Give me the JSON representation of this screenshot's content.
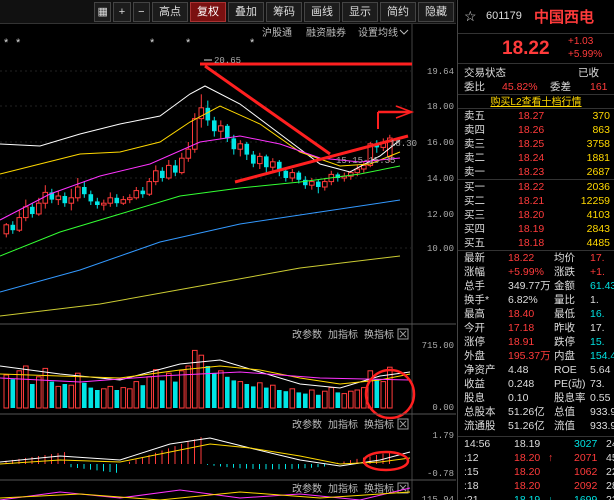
{
  "toolbar": {
    "items": [
      {
        "label": "",
        "icon": "grid-icon"
      },
      {
        "label": "+",
        "icon": "plus-icon"
      },
      {
        "label": "−",
        "icon": "minus-icon"
      },
      {
        "label": "高点"
      },
      {
        "label": "复权",
        "active": true
      },
      {
        "label": "叠加"
      },
      {
        "label": "筹码"
      },
      {
        "label": "画线"
      },
      {
        "label": "显示"
      },
      {
        "label": "简约"
      },
      {
        "label": "隐藏"
      }
    ]
  },
  "main_chart": {
    "links": [
      "沪股通",
      "融资融券",
      "设置均线"
    ],
    "price_axis": [
      "19.64",
      "18.00",
      "16.00",
      "14.00",
      "12.00",
      "10.00"
    ],
    "annot_high": "20.65",
    "annot_low": "15.15-15.35",
    "annot_ma": "18.30"
  },
  "volume_panel": {
    "links": [
      "改参数",
      "加指标",
      "换指标"
    ],
    "axis": [
      "715.00",
      "0.00"
    ]
  },
  "macd_panel": {
    "links": [
      "改参数",
      "加指标",
      "换指标"
    ],
    "axis": [
      "1.79",
      "-0.78"
    ]
  },
  "third_panel": {
    "links": [
      "改参数",
      "加指标",
      "换指标"
    ],
    "axis": [
      "115.94"
    ]
  },
  "quote": {
    "code": "601179",
    "name": "中国西电",
    "price": "18.22",
    "change": "+1.03",
    "change_pct": "+5.99%",
    "status_label": "交易状态",
    "status_value": "已收",
    "weibi_label": "委比",
    "weibi_value": "45.82%",
    "weicha_label": "委差",
    "weicha_value": "161",
    "order_link": "购买L2查看十档行情",
    "asks": [
      {
        "label": "卖五",
        "price": "18.27",
        "vol": "370"
      },
      {
        "label": "卖四",
        "price": "18.26",
        "vol": "863"
      },
      {
        "label": "卖三",
        "price": "18.25",
        "vol": "3758"
      },
      {
        "label": "卖二",
        "price": "18.24",
        "vol": "1881"
      },
      {
        "label": "卖一",
        "price": "18.23",
        "vol": "2687"
      }
    ],
    "bids": [
      {
        "label": "买一",
        "price": "18.22",
        "vol": "2036"
      },
      {
        "label": "买二",
        "price": "18.21",
        "vol": "12259"
      },
      {
        "label": "买三",
        "price": "18.20",
        "vol": "4103"
      },
      {
        "label": "买四",
        "price": "18.19",
        "vol": "2843"
      },
      {
        "label": "买五",
        "price": "18.18",
        "vol": "4485"
      }
    ],
    "stats": [
      {
        "l1": "最新",
        "v1": "18.22",
        "c1": "red",
        "l2": "均价",
        "v2": "17.",
        "c2": "red"
      },
      {
        "l1": "涨幅",
        "v1": "+5.99%",
        "c1": "red",
        "l2": "涨跌",
        "v2": "+1.",
        "c2": "red"
      },
      {
        "l1": "总手",
        "v1": "349.77万",
        "c1": "white",
        "l2": "金额",
        "v2": "61.43",
        "c2": "green"
      },
      {
        "l1": "换手*",
        "v1": "6.82%",
        "c1": "white",
        "l2": "量比",
        "v2": "1.",
        "c2": "white"
      },
      {
        "l1": "最高",
        "v1": "18.40",
        "c1": "red",
        "l2": "最低",
        "v2": "16.",
        "c2": "green"
      },
      {
        "l1": "今开",
        "v1": "17.18",
        "c1": "red",
        "l2": "昨收",
        "v2": "17.",
        "c2": "white"
      },
      {
        "l1": "涨停",
        "v1": "18.91",
        "c1": "red",
        "l2": "跌停",
        "v2": "15.",
        "c2": "green"
      },
      {
        "l1": "外盘",
        "v1": "195.37万",
        "c1": "red",
        "l2": "内盘",
        "v2": "154.40",
        "c2": "green"
      },
      {
        "l1": "净资产",
        "v1": "4.48",
        "c1": "white",
        "l2": "ROE",
        "v2": "5.64",
        "c2": "white"
      },
      {
        "l1": "收益",
        "v1": "0.248",
        "c1": "white",
        "l2": "PE(动)",
        "v2": "73.",
        "c2": "white"
      },
      {
        "l1": "股息",
        "v1": "0.10",
        "c1": "white",
        "l2": "股息率",
        "v2": "0.55",
        "c2": "white"
      },
      {
        "l1": "总股本",
        "v1": "51.26亿",
        "c1": "white",
        "l2": "总值",
        "v2": "933.9",
        "c2": "white"
      },
      {
        "l1": "流通股",
        "v1": "51.26亿",
        "c1": "white",
        "l2": "流值",
        "v2": "933.9",
        "c2": "white"
      }
    ],
    "ticks": [
      {
        "time": "14:56",
        "price": "18.19",
        "vol": "3027",
        "tail": "24",
        "pc": "white",
        "vc": "green"
      },
      {
        "time": ":12",
        "price": "18.20",
        "arrow": "↑",
        "vol": "2071",
        "tail": "45",
        "pc": "red",
        "vc": "red"
      },
      {
        "time": ":15",
        "price": "18.20",
        "vol": "1062",
        "tail": "22",
        "pc": "red",
        "vc": "red"
      },
      {
        "time": ":18",
        "price": "18.20",
        "vol": "2092",
        "tail": "28",
        "pc": "red",
        "vc": "red"
      },
      {
        "time": ":21",
        "price": "18.19",
        "arrow": "↓",
        "vol": "1699",
        "tail": "22",
        "pc": "green",
        "vc": "green"
      }
    ]
  }
}
